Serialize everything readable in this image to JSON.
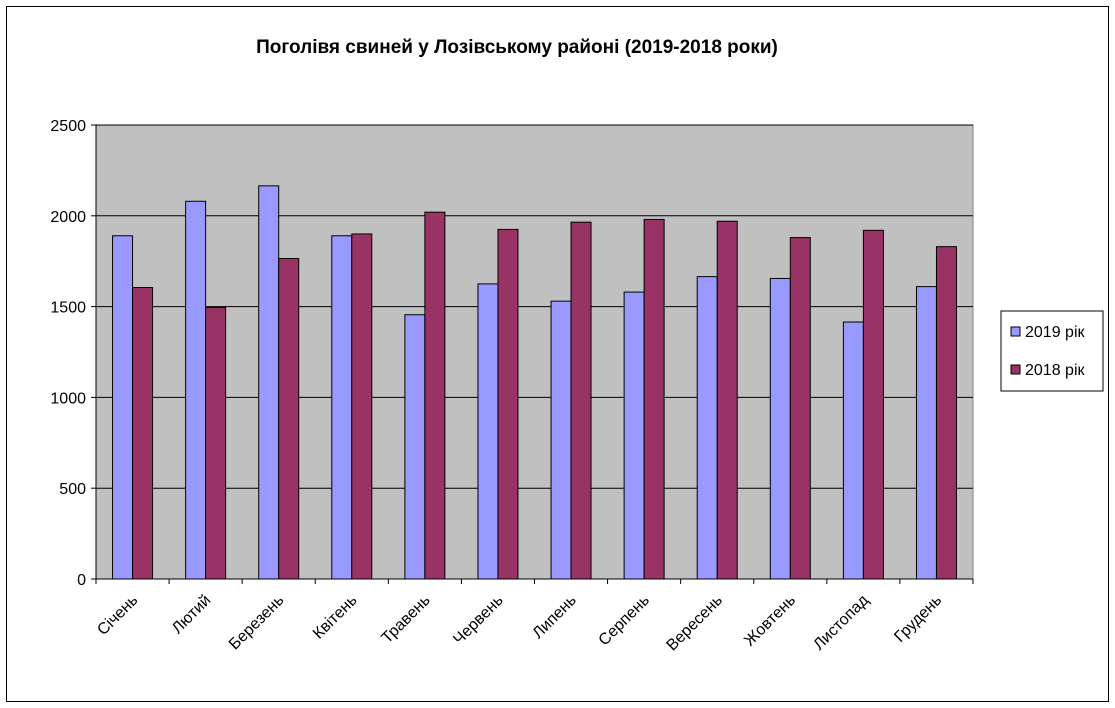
{
  "chart_data": {
    "type": "bar",
    "title": "Поголівя свиней у Лозівському районі (2019-2018 роки)",
    "xlabel": "",
    "ylabel": "",
    "ylim": [
      0,
      2500
    ],
    "yticks": [
      0,
      500,
      1000,
      1500,
      2000,
      2500
    ],
    "grid": true,
    "legend_position": "right",
    "categories": [
      "Січень",
      "Лютий",
      "Березень",
      "Квітень",
      "Травень",
      "Червень",
      "Липень",
      "Серпень",
      "Вересень",
      "Жовтень",
      "Листопад",
      "Грудень"
    ],
    "series": [
      {
        "name": "2019 рік",
        "color": "#9999ff",
        "values": [
          1890,
          2080,
          2165,
          1890,
          1455,
          1625,
          1530,
          1580,
          1665,
          1655,
          1415,
          1610
        ]
      },
      {
        "name": "2018 рік",
        "color": "#993366",
        "values": [
          1605,
          1495,
          1765,
          1900,
          2020,
          1925,
          1965,
          1980,
          1970,
          1880,
          1920,
          1830
        ]
      }
    ],
    "plot_background": "#c0c0c0"
  }
}
